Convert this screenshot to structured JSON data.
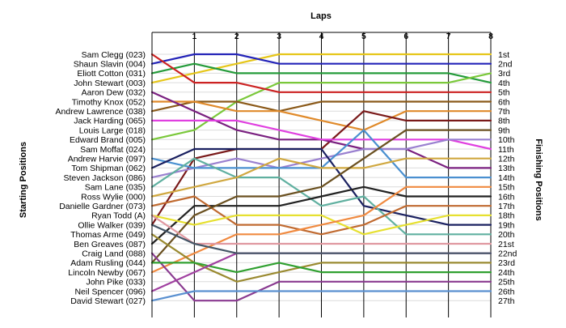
{
  "chart_data": {
    "type": "line",
    "xlabel": "Laps",
    "ylabel_left": "Starting Positions",
    "ylabel_right": "Finishing Positions",
    "x": [
      0,
      1,
      2,
      3,
      4,
      5,
      6,
      7,
      8
    ],
    "xticks": [
      "1",
      "2",
      "3",
      "4",
      "5",
      "6",
      "7",
      "8"
    ],
    "ylim": [
      1,
      27
    ],
    "grid": true,
    "starting_labels": [
      "Sam Clegg (023)",
      "Shaun Slavin (004)",
      "Eliott Cotton (031)",
      "John Stewart (003)",
      "Aaron Dew (032)",
      "Timothy Knox (052)",
      "Andrew Lawrence (038)",
      "Jack Harding (065)",
      "Louis Large (018)",
      "Edward Brand (005)",
      "Sam Moffat (024)",
      "Andrew Harvie (097)",
      "Tom Shipman (062)",
      "Steven Jackson (086)",
      "Sam Lane (035)",
      "Ross Wylie (000)",
      "Danielle Gardner (073)",
      "Ryan Todd (A)",
      "Ollie Walker (039)",
      "Thomas Arme (049)",
      "Ben Greaves (087)",
      "Craig Land (088)",
      "Adam Rusling (044)",
      "Lincoln Newby (067)",
      "John Pike (033)",
      "Neil Spencer (096)",
      "David Stewart (027)"
    ],
    "finishing_labels": [
      "1st",
      "2nd",
      "3rd",
      "4th",
      "5th",
      "6th",
      "7th",
      "8th",
      "9th",
      "10th",
      "11th",
      "12th",
      "13th",
      "14th",
      "15th",
      "16th",
      "17th",
      "18th",
      "19th",
      "20th",
      "21st",
      "22nd",
      "23rd",
      "24th",
      "25th",
      "26th",
      "27th"
    ],
    "series": [
      {
        "color": "#e6c619",
        "values": [
          4,
          3,
          2,
          1,
          1,
          1,
          1,
          1,
          1
        ]
      },
      {
        "color": "#2424b8",
        "values": [
          2,
          1,
          1,
          2,
          2,
          2,
          2,
          2,
          2
        ]
      },
      {
        "color": "#249b3a",
        "values": [
          3,
          2,
          3,
          3,
          3,
          3,
          3,
          3,
          4
        ]
      },
      {
        "color": "#7ac83a",
        "values": [
          10,
          9,
          6,
          4,
          4,
          4,
          4,
          4,
          3
        ]
      },
      {
        "color": "#cc2222",
        "values": [
          1,
          4,
          4,
          5,
          5,
          5,
          5,
          5,
          5
        ]
      },
      {
        "color": "#8b5a1a",
        "values": [
          7,
          6,
          6,
          7,
          6,
          6,
          6,
          6,
          6
        ]
      },
      {
        "color": "#e08a2a",
        "values": [
          6,
          6,
          7,
          7,
          8,
          9,
          7,
          7,
          7
        ]
      },
      {
        "color": "#7a1a1a",
        "values": [
          19,
          12,
          11,
          11,
          11,
          7,
          8,
          8,
          8
        ]
      },
      {
        "color": "#7a2080",
        "values": [
          5,
          7,
          9,
          10,
          10,
          11,
          11,
          13,
          13
        ]
      },
      {
        "color": "#e040e0",
        "values": [
          8,
          8,
          8,
          9,
          10,
          10,
          10,
          10,
          11
        ]
      },
      {
        "color": "#9a80d0",
        "values": [
          14,
          13,
          12,
          13,
          12,
          11,
          11,
          10,
          10
        ]
      },
      {
        "color": "#4a90d0",
        "values": [
          12,
          13,
          13,
          13,
          13,
          9,
          14,
          14,
          14
        ]
      },
      {
        "color": "#1a2060",
        "values": [
          13,
          11,
          11,
          11,
          11,
          17,
          18,
          19,
          19
        ]
      },
      {
        "color": "#60b0a0",
        "values": [
          15,
          12,
          14,
          14,
          17,
          16,
          20,
          20,
          20
        ]
      },
      {
        "color": "#d0a840",
        "values": [
          16,
          15,
          14,
          12,
          13,
          13,
          12,
          12,
          12
        ]
      },
      {
        "color": "#222222",
        "values": [
          21,
          17,
          17,
          17,
          16,
          15,
          16,
          16,
          16
        ]
      },
      {
        "color": "#c06a30",
        "values": [
          17,
          16,
          19,
          19,
          20,
          19,
          17,
          17,
          17
        ]
      },
      {
        "color": "#e6e030",
        "values": [
          18,
          19,
          18,
          18,
          18,
          20,
          19,
          18,
          18
        ]
      },
      {
        "color": "#f08a40",
        "values": [
          24,
          22,
          20,
          20,
          19,
          18,
          15,
          15,
          15
        ]
      },
      {
        "color": "#6a5020",
        "values": [
          23,
          18,
          16,
          16,
          15,
          12,
          9,
          9,
          9
        ]
      },
      {
        "color": "#e098a0",
        "values": [
          18,
          21,
          21,
          21,
          21,
          21,
          21,
          21,
          21
        ]
      },
      {
        "color": "#9a8a30",
        "values": [
          20,
          23,
          25,
          24,
          23,
          23,
          23,
          23,
          23
        ]
      },
      {
        "color": "#8a3a90",
        "values": [
          22,
          27,
          27,
          25,
          25,
          25,
          25,
          25,
          25
        ]
      },
      {
        "color": "#30a030",
        "values": [
          23,
          23,
          24,
          23,
          24,
          24,
          24,
          24,
          24
        ]
      },
      {
        "color": "#a040a0",
        "values": [
          26,
          24,
          22,
          22,
          22,
          22,
          22,
          22,
          22
        ]
      },
      {
        "color": "#5a90d0",
        "values": [
          27,
          26,
          26,
          26,
          26,
          26,
          26,
          26,
          26
        ]
      },
      {
        "color": "#445566",
        "values": [
          19,
          21,
          22,
          22,
          22,
          22,
          22,
          22,
          22
        ]
      }
    ]
  }
}
